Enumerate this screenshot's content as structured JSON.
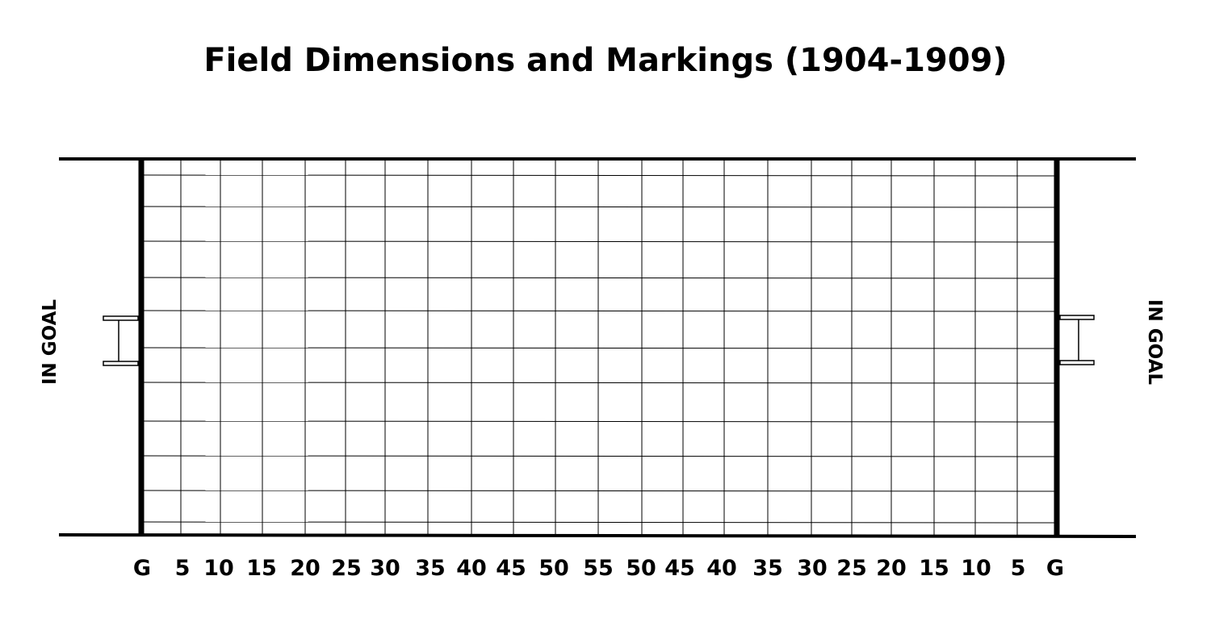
{
  "title": "Field Dimensions and Markings (1904-1909)",
  "in_goal_left": "IN GOAL",
  "in_goal_right": "IN GOAL",
  "yard_labels": [
    "G",
    "5",
    "10",
    "15",
    "20",
    "25",
    "30",
    "35",
    "40",
    "45",
    "50",
    "55",
    "50",
    "45",
    "40",
    "35",
    "30",
    "25",
    "20",
    "15",
    "10",
    "5",
    "G"
  ],
  "grid_line_color": "#000000",
  "background_color": "#ffffff"
}
